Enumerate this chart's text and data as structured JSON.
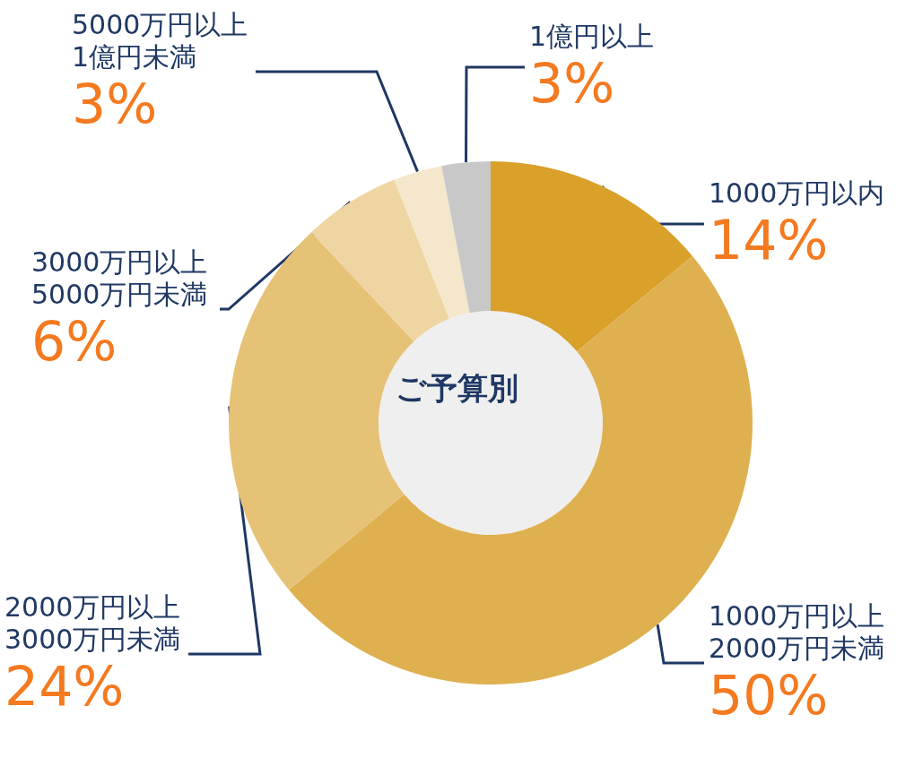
{
  "chart_data": {
    "type": "donut",
    "title": "ご予算別",
    "categories": [
      "1000万円以内",
      "1000万円以上\n2000万円未満",
      "2000万円以上\n3000万円未満",
      "3000万円以上\n5000万円未満",
      "5000万円以上\n1億円未満",
      "1億円以上"
    ],
    "values": [
      14,
      50,
      24,
      6,
      3,
      3
    ],
    "value_labels": [
      "14%",
      "50%",
      "24%",
      "6%",
      "3%",
      "3%"
    ],
    "colors": [
      "#d9a02a",
      "#dfb04f",
      "#e6c277",
      "#efd5a2",
      "#f5e7cc",
      "#c8c8c8"
    ],
    "legend": false
  }
}
